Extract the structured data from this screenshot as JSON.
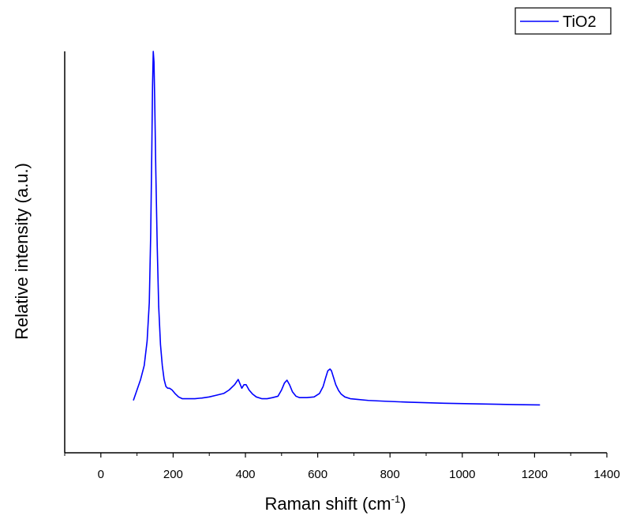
{
  "chart_data": {
    "type": "line",
    "title": "",
    "xlabel": "Raman shift (cm",
    "xlabel_sup": "-1",
    "xlabel_end": ")",
    "ylabel": "Relative intensity (a.u.)",
    "xlim": [
      -100,
      1400
    ],
    "ylim": [
      -0.15,
      1.0
    ],
    "x_ticks": [
      0,
      200,
      400,
      600,
      800,
      1000,
      1200,
      1400
    ],
    "y_ticks_shown": false,
    "grid": false,
    "legend_position": "top-right",
    "line_color": "#0000ff",
    "series": [
      {
        "name": "TiO2",
        "x": [
          90,
          100,
          110,
          120,
          128,
          134,
          138,
          141,
          143,
          145,
          147,
          149,
          152,
          156,
          160,
          165,
          170,
          175,
          180,
          185,
          190,
          197,
          205,
          215,
          225,
          240,
          260,
          280,
          300,
          320,
          340,
          355,
          370,
          380,
          390,
          396,
          402,
          410,
          420,
          430,
          445,
          460,
          475,
          490,
          500,
          508,
          515,
          522,
          530,
          540,
          550,
          570,
          590,
          605,
          615,
          622,
          628,
          634,
          638,
          644,
          650,
          658,
          665,
          675,
          690,
          710,
          740,
          780,
          850,
          950,
          1050,
          1150,
          1215
        ],
        "y": [
          0.0,
          0.03,
          0.06,
          0.1,
          0.17,
          0.28,
          0.48,
          0.72,
          0.9,
          1.0,
          0.97,
          0.86,
          0.66,
          0.44,
          0.27,
          0.16,
          0.1,
          0.06,
          0.04,
          0.035,
          0.035,
          0.03,
          0.02,
          0.01,
          0.005,
          0.005,
          0.005,
          0.007,
          0.01,
          0.015,
          0.02,
          0.03,
          0.045,
          0.06,
          0.035,
          0.045,
          0.045,
          0.03,
          0.018,
          0.01,
          0.005,
          0.005,
          0.008,
          0.012,
          0.03,
          0.05,
          0.058,
          0.045,
          0.025,
          0.012,
          0.008,
          0.008,
          0.01,
          0.02,
          0.04,
          0.065,
          0.085,
          0.09,
          0.085,
          0.065,
          0.045,
          0.028,
          0.018,
          0.01,
          0.005,
          0.003,
          0.0,
          -0.002,
          -0.005,
          -0.008,
          -0.01,
          -0.012,
          -0.013
        ]
      }
    ]
  }
}
